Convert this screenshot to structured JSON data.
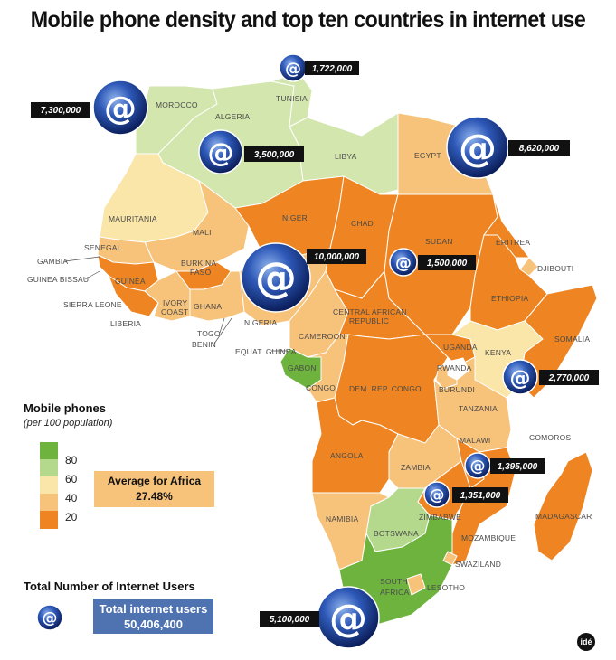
{
  "title": "Mobile phone density and top ten countries in internet use",
  "countries": {
    "morocco": "MOROCCO",
    "algeria": "ALGERIA",
    "tunisia": "TUNISIA",
    "libya": "LIBYA",
    "egypt": "EGYPT",
    "mauritania": "MAURITANIA",
    "mali": "MALI",
    "niger": "NIGER",
    "chad": "CHAD",
    "sudan": "SUDAN",
    "eritrea": "ERITREA",
    "djibouti": "DJIBOUTI",
    "ethiopia": "ETHIOPIA",
    "somalia": "SOMALIA",
    "senegal": "SENEGAL",
    "gambia": "GAMBIA",
    "guinea_bissau": "GUINEA BISSAU",
    "guinea": "GUINEA",
    "sierra_leone": "SIERRA LEONE",
    "liberia": "LIBERIA",
    "ivory_coast_1": "IVORY",
    "ivory_coast_2": "COAST",
    "burkina_1": "BURKINA",
    "burkina_2": "FASO",
    "ghana": "GHANA",
    "togo": "TOGO",
    "benin": "BENIN",
    "nigeria": "NIGERIA",
    "car_1": "CENTRAL AFRICAN",
    "car_2": "REPUBLIC",
    "cameroon": "CAMEROON",
    "equat_guinea": "EQUAT. GUINEA",
    "gabon": "GABON",
    "congo": "CONGO",
    "drc": "DEM. REP. CONGO",
    "uganda": "UGANDA",
    "kenya": "KENYA",
    "rwanda": "RWANDA",
    "burundi": "BURUNDI",
    "tanzania": "TANZANIA",
    "comoros": "COMOROS",
    "angola": "ANGOLA",
    "zambia": "ZAMBIA",
    "malawi": "MALAWI",
    "zimbabwe": "ZIMBABWE",
    "mozambique": "MOZAMBIQUE",
    "madagascar": "MADAGASCAR",
    "namibia": "NAMIBIA",
    "botswana": "BOTSWANA",
    "swaziland": "SWAZILAND",
    "south_africa_1": "SOUTH",
    "south_africa_2": "AFRICA",
    "lesotho": "LESOTHO"
  },
  "internet_users": [
    {
      "country": "Tunisia",
      "value": "1,722,000"
    },
    {
      "country": "Morocco",
      "value": "7,300,000"
    },
    {
      "country": "Algeria",
      "value": "3,500,000"
    },
    {
      "country": "Egypt",
      "value": "8,620,000"
    },
    {
      "country": "Nigeria",
      "value": "10,000,000"
    },
    {
      "country": "Sudan",
      "value": "1,500,000"
    },
    {
      "country": "Kenya",
      "value": "2,770,000"
    },
    {
      "country": "Tanzania",
      "value": "1,395,000"
    },
    {
      "country": "Zimbabwe",
      "value": "1,351,000"
    },
    {
      "country": "South Africa",
      "value": "5,100,000"
    }
  ],
  "icon_glyph": "@",
  "legend": {
    "title": "Mobile phones",
    "subtitle": "(per 100 population)",
    "ticks": [
      "80",
      "60",
      "40",
      "20"
    ],
    "colors": [
      "#6fb33f",
      "#b4d98c",
      "#f9e6a8",
      "#f7c27a",
      "#ee8522"
    ],
    "average_label": "Average for Africa",
    "average_value": "27.48%"
  },
  "totals": {
    "title": "Total Number of Internet Users",
    "box_label": "Total internet users",
    "box_value": "50,406,400"
  },
  "credit": "idé"
}
